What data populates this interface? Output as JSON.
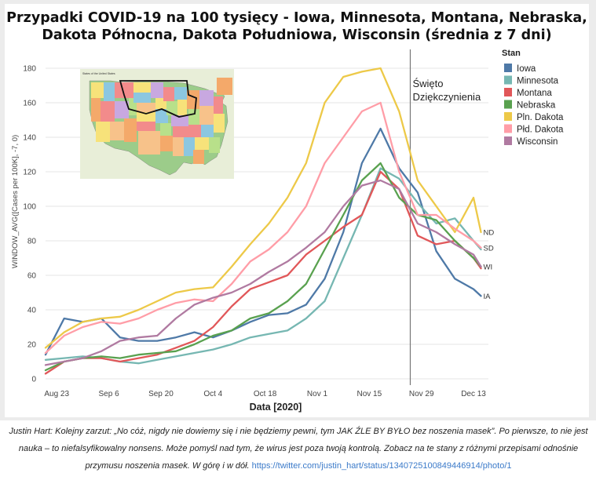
{
  "chart_data": {
    "type": "line",
    "title_lines": [
      "Przypadki COVID-19 na 100 tysięcy - Iowa, Minnesota, Montana, Nebraska,",
      "Dakota Północna, Dakota Południowa, Wisconsin (średnia z 7 dni)"
    ],
    "xlabel": "Data [2020]",
    "ylabel": "WINDOW_AVG([Cases per 100K], -7, 0)",
    "ylim": [
      0,
      190
    ],
    "yticks": [
      0,
      20,
      40,
      60,
      80,
      100,
      120,
      140,
      160,
      180
    ],
    "x_range": [
      "2020-08-20",
      "2020-12-17"
    ],
    "xticks": [
      {
        "date": "2020-08-23",
        "label": "Aug 23"
      },
      {
        "date": "2020-09-06",
        "label": "Sep 6"
      },
      {
        "date": "2020-09-20",
        "label": "Sep 20"
      },
      {
        "date": "2020-10-04",
        "label": "Oct 4"
      },
      {
        "date": "2020-10-18",
        "label": "Oct 18"
      },
      {
        "date": "2020-11-01",
        "label": "Nov 1"
      },
      {
        "date": "2020-11-15",
        "label": "Nov 15"
      },
      {
        "date": "2020-11-29",
        "label": "Nov 29"
      },
      {
        "date": "2020-12-13",
        "label": "Dec 13"
      }
    ],
    "grid": true,
    "legend_title": "Stan",
    "legend_position": "right",
    "annotation": {
      "date": "2020-11-26",
      "text_lines": [
        "Święto",
        "Dziękczynienia"
      ]
    },
    "series": [
      {
        "name": "Iowa",
        "color": "#4e79a7",
        "end_label": "IA",
        "x": [
          "2020-08-20",
          "2020-08-25",
          "2020-08-30",
          "2020-09-04",
          "2020-09-09",
          "2020-09-14",
          "2020-09-19",
          "2020-09-24",
          "2020-09-29",
          "2020-10-04",
          "2020-10-09",
          "2020-10-14",
          "2020-10-19",
          "2020-10-24",
          "2020-10-29",
          "2020-11-03",
          "2020-11-08",
          "2020-11-13",
          "2020-11-18",
          "2020-11-23",
          "2020-11-28",
          "2020-12-03",
          "2020-12-08",
          "2020-12-13",
          "2020-12-15"
        ],
        "values": [
          14,
          35,
          33,
          35,
          24,
          22,
          22,
          24,
          27,
          24,
          28,
          33,
          37,
          38,
          43,
          58,
          85,
          125,
          145,
          122,
          108,
          74,
          58,
          52,
          48
        ]
      },
      {
        "name": "Minnesota",
        "color": "#76b7b2",
        "end_label": "",
        "x": [
          "2020-08-20",
          "2020-08-25",
          "2020-08-30",
          "2020-09-04",
          "2020-09-09",
          "2020-09-14",
          "2020-09-19",
          "2020-09-24",
          "2020-09-29",
          "2020-10-04",
          "2020-10-09",
          "2020-10-14",
          "2020-10-19",
          "2020-10-24",
          "2020-10-29",
          "2020-11-03",
          "2020-11-08",
          "2020-11-13",
          "2020-11-18",
          "2020-11-23",
          "2020-11-28",
          "2020-12-03",
          "2020-12-08",
          "2020-12-13",
          "2020-12-15"
        ],
        "values": [
          11,
          12,
          13,
          12,
          10,
          9,
          11,
          13,
          15,
          17,
          20,
          24,
          26,
          28,
          35,
          45,
          70,
          95,
          122,
          116,
          102,
          90,
          93,
          80,
          75
        ]
      },
      {
        "name": "Montana",
        "color": "#e15759",
        "end_label": "",
        "x": [
          "2020-08-20",
          "2020-08-25",
          "2020-08-30",
          "2020-09-04",
          "2020-09-09",
          "2020-09-14",
          "2020-09-19",
          "2020-09-24",
          "2020-09-29",
          "2020-10-04",
          "2020-10-09",
          "2020-10-14",
          "2020-10-19",
          "2020-10-24",
          "2020-10-29",
          "2020-11-03",
          "2020-11-08",
          "2020-11-13",
          "2020-11-18",
          "2020-11-23",
          "2020-11-28",
          "2020-12-03",
          "2020-12-08",
          "2020-12-13",
          "2020-12-15"
        ],
        "values": [
          3,
          10,
          12,
          12,
          10,
          12,
          14,
          18,
          22,
          30,
          42,
          52,
          56,
          60,
          72,
          80,
          88,
          95,
          120,
          110,
          83,
          78,
          80,
          70,
          64
        ]
      },
      {
        "name": "Nebraska",
        "color": "#59a14f",
        "end_label": "",
        "x": [
          "2020-08-20",
          "2020-08-25",
          "2020-08-30",
          "2020-09-04",
          "2020-09-09",
          "2020-09-14",
          "2020-09-19",
          "2020-09-24",
          "2020-09-29",
          "2020-10-04",
          "2020-10-09",
          "2020-10-14",
          "2020-10-19",
          "2020-10-24",
          "2020-10-29",
          "2020-11-03",
          "2020-11-08",
          "2020-11-13",
          "2020-11-18",
          "2020-11-23",
          "2020-11-28",
          "2020-12-03",
          "2020-12-08",
          "2020-12-13",
          "2020-12-15"
        ],
        "values": [
          5,
          10,
          12,
          13,
          12,
          14,
          15,
          16,
          20,
          25,
          28,
          35,
          38,
          45,
          55,
          75,
          95,
          115,
          125,
          105,
          95,
          92,
          80,
          70,
          65
        ]
      },
      {
        "name": "Pln. Dakota",
        "color": "#edc948",
        "end_label": "ND",
        "x": [
          "2020-08-20",
          "2020-08-25",
          "2020-08-30",
          "2020-09-04",
          "2020-09-09",
          "2020-09-14",
          "2020-09-19",
          "2020-09-24",
          "2020-09-29",
          "2020-10-04",
          "2020-10-09",
          "2020-10-14",
          "2020-10-19",
          "2020-10-24",
          "2020-10-29",
          "2020-11-03",
          "2020-11-08",
          "2020-11-13",
          "2020-11-18",
          "2020-11-23",
          "2020-11-28",
          "2020-12-03",
          "2020-12-08",
          "2020-12-13",
          "2020-12-15"
        ],
        "values": [
          18,
          27,
          33,
          35,
          36,
          40,
          45,
          50,
          52,
          53,
          65,
          78,
          90,
          105,
          125,
          160,
          175,
          178,
          180,
          155,
          115,
          100,
          85,
          105,
          85
        ]
      },
      {
        "name": "Płd. Dakota",
        "color": "#ff9da7",
        "end_label": "SD",
        "x": [
          "2020-08-20",
          "2020-08-25",
          "2020-08-30",
          "2020-09-04",
          "2020-09-09",
          "2020-09-14",
          "2020-09-19",
          "2020-09-24",
          "2020-09-29",
          "2020-10-04",
          "2020-10-09",
          "2020-10-14",
          "2020-10-19",
          "2020-10-24",
          "2020-10-29",
          "2020-11-03",
          "2020-11-08",
          "2020-11-13",
          "2020-11-18",
          "2020-11-23",
          "2020-11-28",
          "2020-12-03",
          "2020-12-08",
          "2020-12-13",
          "2020-12-15"
        ],
        "values": [
          15,
          25,
          30,
          33,
          32,
          35,
          40,
          44,
          46,
          45,
          55,
          68,
          75,
          85,
          100,
          125,
          140,
          155,
          160,
          120,
          95,
          95,
          87,
          80,
          76
        ]
      },
      {
        "name": "Wisconsin",
        "color": "#b07aa1",
        "end_label": "WI",
        "x": [
          "2020-08-20",
          "2020-08-25",
          "2020-08-30",
          "2020-09-04",
          "2020-09-09",
          "2020-09-14",
          "2020-09-19",
          "2020-09-24",
          "2020-09-29",
          "2020-10-04",
          "2020-10-09",
          "2020-10-14",
          "2020-10-19",
          "2020-10-24",
          "2020-10-29",
          "2020-11-03",
          "2020-11-08",
          "2020-11-13",
          "2020-11-18",
          "2020-11-23",
          "2020-11-28",
          "2020-12-03",
          "2020-12-08",
          "2020-12-13",
          "2020-12-15"
        ],
        "values": [
          8,
          10,
          12,
          16,
          22,
          24,
          25,
          35,
          43,
          47,
          50,
          55,
          62,
          68,
          76,
          85,
          100,
          112,
          115,
          110,
          90,
          85,
          78,
          72,
          65
        ]
      }
    ]
  },
  "inset_map": {
    "title": "States of the United States",
    "bg_color": "#e8eed8",
    "highlight_color": "#111111"
  },
  "caption": {
    "text": "Justin Hart: Kolejny zarzut: „No cóż, nigdy nie dowiemy się i nie będziemy pewni, tym JAK ŹLE BY BYŁO bez noszenia masek”. Po pierwsze, to nie jest nauka – to niefalsyfikowalny nonsens. Może pomyśl nad tym, że wirus jest poza twoją kontrolą. Zobacz na te stany z różnymi przepisami odnośnie przymusu noszenia masek. W górę i w dół.",
    "link": "https://twitter.com/justin_hart/status/1340725100849446914/photo/1"
  }
}
